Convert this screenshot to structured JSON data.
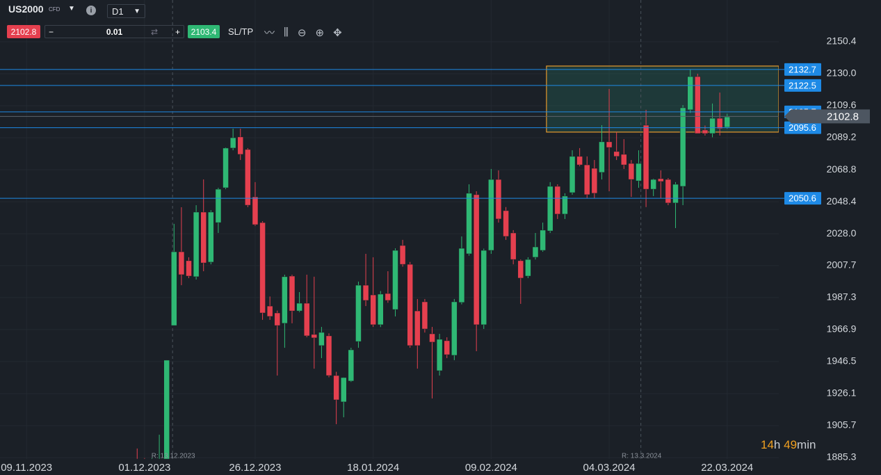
{
  "toolbar": {
    "symbol": "US2000",
    "symbol_type": "CFD",
    "timeframe": "D1",
    "sell_price": 2102.8,
    "quantity": 0.01,
    "buy_price": 2103.4,
    "sl_tp": "SL/TP"
  },
  "chart_data": {
    "type": "candlestick",
    "up_color": "#2fb874",
    "down_color": "#e5404f",
    "level_color": "#1e8ae6",
    "grid": true,
    "ylim": [
      1884.4,
      2177.0
    ],
    "yticks": [
      2150.4,
      {
        "value": 2130,
        "label": "2130.0"
      },
      2109.6,
      2089.2,
      2068.8,
      2048.4,
      {
        "value": 2028,
        "label": "2028.0"
      },
      2007.7,
      1987.3,
      1966.9,
      1946.5,
      1926.1,
      1905.7,
      1885.3
    ],
    "xlim": [
      -16.6,
      89
    ],
    "xticks": [
      {
        "value": -13,
        "label": "09.11.2023"
      },
      {
        "value": 3,
        "label": "01.12.2023"
      },
      {
        "value": 18,
        "label": "26.12.2023"
      },
      {
        "value": 34,
        "label": "18.01.2024"
      },
      {
        "value": 50,
        "label": "09.02.2024"
      },
      {
        "value": 66,
        "label": "04.03.2024"
      },
      {
        "value": 82,
        "label": "22.03.2024"
      }
    ],
    "levels": [
      2132.7,
      2122.5,
      2105.7,
      2095.6,
      2050.6
    ],
    "last_price": 2102.8,
    "zone": {
      "x0": 57.5,
      "top": 2134.9,
      "bottom": 2092.8
    },
    "markers": [
      {
        "x": 6.8,
        "label": "R: 13.12.2023"
      },
      {
        "x": 70.3,
        "label": "R: 13.3.2024"
      }
    ],
    "ohlc": [
      [
        1883.5,
        1884.4,
        1883.0,
        1884.4
      ],
      [
        1883.5,
        1884.4,
        1883.0,
        1884.0
      ],
      [
        1884.4,
        1891.1,
        1883.5,
        1884.0
      ],
      [
        1884.4,
        1885.0,
        1883.5,
        1884.0
      ],
      [
        1884.0,
        1885.0,
        1883.5,
        1884.4
      ],
      [
        1884.0,
        1899.9,
        1883.5,
        1884.4
      ],
      [
        1884.4,
        1947.4,
        1883.5,
        1947.4
      ],
      [
        1969.5,
        2034.3,
        1969.5,
        2016.5
      ],
      [
        2016.5,
        2044.9,
        1995.2,
        2001.9
      ],
      [
        2010.8,
        2013.0,
        1999.7,
        2001.0
      ],
      [
        2000.6,
        2046.2,
        1998.8,
        2041.8
      ],
      [
        2041.8,
        2062.6,
        2004.1,
        2009.4
      ],
      [
        2009.9,
        2043.0,
        2008.5,
        2041.8
      ],
      [
        2035.1,
        2057.3,
        2028.5,
        2056.4
      ],
      [
        2057.3,
        2083.0,
        2056.4,
        2082.6
      ],
      [
        2082.6,
        2095.0,
        2081.2,
        2089.2
      ],
      [
        2089.7,
        2095.0,
        2075.0,
        2078.6
      ],
      [
        2081.7,
        2082.6,
        2045.0,
        2046.2
      ],
      [
        2051.5,
        2060.9,
        2033.0,
        2033.8
      ],
      [
        2035.1,
        2036.0,
        1973.1,
        1977.5
      ],
      [
        1981.9,
        1988.0,
        1973.1,
        1975.3
      ],
      [
        1977.5,
        1979.0,
        1937.6,
        1969.5
      ],
      [
        1970.9,
        2001.9,
        1955.3,
        2000.6
      ],
      [
        2001.0,
        2001.9,
        1970.9,
        1978.8
      ],
      [
        1978.8,
        1990.8,
        1978.0,
        1983.7
      ],
      [
        1983.7,
        2001.9,
        1962.0,
        1962.9
      ],
      [
        1963.8,
        2000.6,
        1942.0,
        1961.6
      ],
      [
        1956.7,
        1968.6,
        1948.7,
        1965.1
      ],
      [
        1962.9,
        1964.5,
        1936.5,
        1937.6
      ],
      [
        1937.6,
        1940.0,
        1906.6,
        1922.1
      ],
      [
        1920.8,
        1936.5,
        1911.0,
        1936.3
      ],
      [
        1934.1,
        1955.3,
        1933.5,
        1954.0
      ],
      [
        1959.3,
        1997.5,
        1955.3,
        1995.2
      ],
      [
        1995.2,
        2015.2,
        1981.9,
        1985.5
      ],
      [
        1989.0,
        2013.0,
        1968.6,
        1970.0
      ],
      [
        1970.0,
        1991.5,
        1968.5,
        1989.5
      ],
      [
        1989.9,
        2004.1,
        1984.0,
        1985.5
      ],
      [
        1979.7,
        2018.7,
        1975.3,
        2017.4
      ],
      [
        2020.5,
        2024.1,
        2007.0,
        2008.5
      ],
      [
        2008.5,
        2010.0,
        1955.3,
        1956.7
      ],
      [
        1978.8,
        1986.4,
        1942.0,
        1956.7
      ],
      [
        1984.6,
        1986.4,
        1965.0,
        1967.3
      ],
      [
        1964.2,
        1968.6,
        1923.0,
        1958.9
      ],
      [
        1940.7,
        1964.2,
        1937.6,
        1960.7
      ],
      [
        1959.8,
        1962.0,
        1948.7,
        1950.9
      ],
      [
        1950.5,
        1986.4,
        1947.4,
        1984.6
      ],
      [
        1984.2,
        2026.3,
        1983.0,
        2018.7
      ],
      [
        2015.2,
        2059.5,
        2014.0,
        2053.8
      ],
      [
        2052.9,
        2055.1,
        1953.1,
        1970.0
      ],
      [
        1970.0,
        2018.5,
        1967.3,
        2017.4
      ],
      [
        2017.4,
        2069.3,
        2015.2,
        2062.6
      ],
      [
        2062.6,
        2068.4,
        2035.1,
        2037.4
      ],
      [
        2042.7,
        2045.0,
        2024.1,
        2026.3
      ],
      [
        2028.5,
        2030.3,
        2008.5,
        2011.6
      ],
      [
        2010.8,
        2011.6,
        1983.3,
        1999.7
      ],
      [
        2001.0,
        2013.0,
        1999.7,
        2011.6
      ],
      [
        2013.0,
        2028.5,
        2011.6,
        2019.6
      ],
      [
        2017.4,
        2035.1,
        2016.5,
        2030.3
      ],
      [
        2029.8,
        2060.9,
        2028.5,
        2058.2
      ],
      [
        2058.2,
        2059.5,
        2037.4,
        2040.5
      ],
      [
        2040.5,
        2053.8,
        2037.4,
        2052.0
      ],
      [
        2054.2,
        2081.2,
        2052.9,
        2077.3
      ],
      [
        2077.3,
        2082.6,
        2071.0,
        2071.9
      ],
      [
        2071.9,
        2077.3,
        2050.7,
        2052.9
      ],
      [
        2069.7,
        2075.0,
        2050.7,
        2053.8
      ],
      [
        2067.1,
        2097.2,
        2062.6,
        2086.6
      ],
      [
        2086.6,
        2120.3,
        2055.1,
        2083.0
      ],
      [
        2080.4,
        2092.8,
        2075.0,
        2077.3
      ],
      [
        2078.6,
        2088.3,
        2069.3,
        2071.9
      ],
      [
        2072.8,
        2075.0,
        2051.5,
        2062.6
      ],
      [
        2061.7,
        2081.2,
        2057.3,
        2072.8
      ],
      [
        2097.2,
        2107.0,
        2045.0,
        2056.4
      ],
      [
        2056.4,
        2063.1,
        2052.0,
        2062.6
      ],
      [
        2063.1,
        2068.4,
        2050.7,
        2061.3
      ],
      [
        2062.6,
        2063.5,
        2046.2,
        2047.6
      ],
      [
        2047.6,
        2060.9,
        2031.6,
        2059.5
      ],
      [
        2058.2,
        2110.0,
        2046.2,
        2108.3
      ],
      [
        2107.0,
        2132.7,
        2105.0,
        2128.2
      ],
      [
        2128.2,
        2130.0,
        2091.9,
        2091.9
      ],
      [
        2094.1,
        2097.0,
        2090.6,
        2091.9
      ],
      [
        2091.9,
        2111.0,
        2089.5,
        2101.6
      ],
      [
        2101.6,
        2118.0,
        2090.6,
        2095.0
      ],
      [
        2095.9,
        2104.5,
        2095.0,
        2102.5
      ]
    ]
  },
  "timer": {
    "hours": "14",
    "hours_unit": "h",
    "minutes": "49",
    "minutes_unit": "min"
  }
}
